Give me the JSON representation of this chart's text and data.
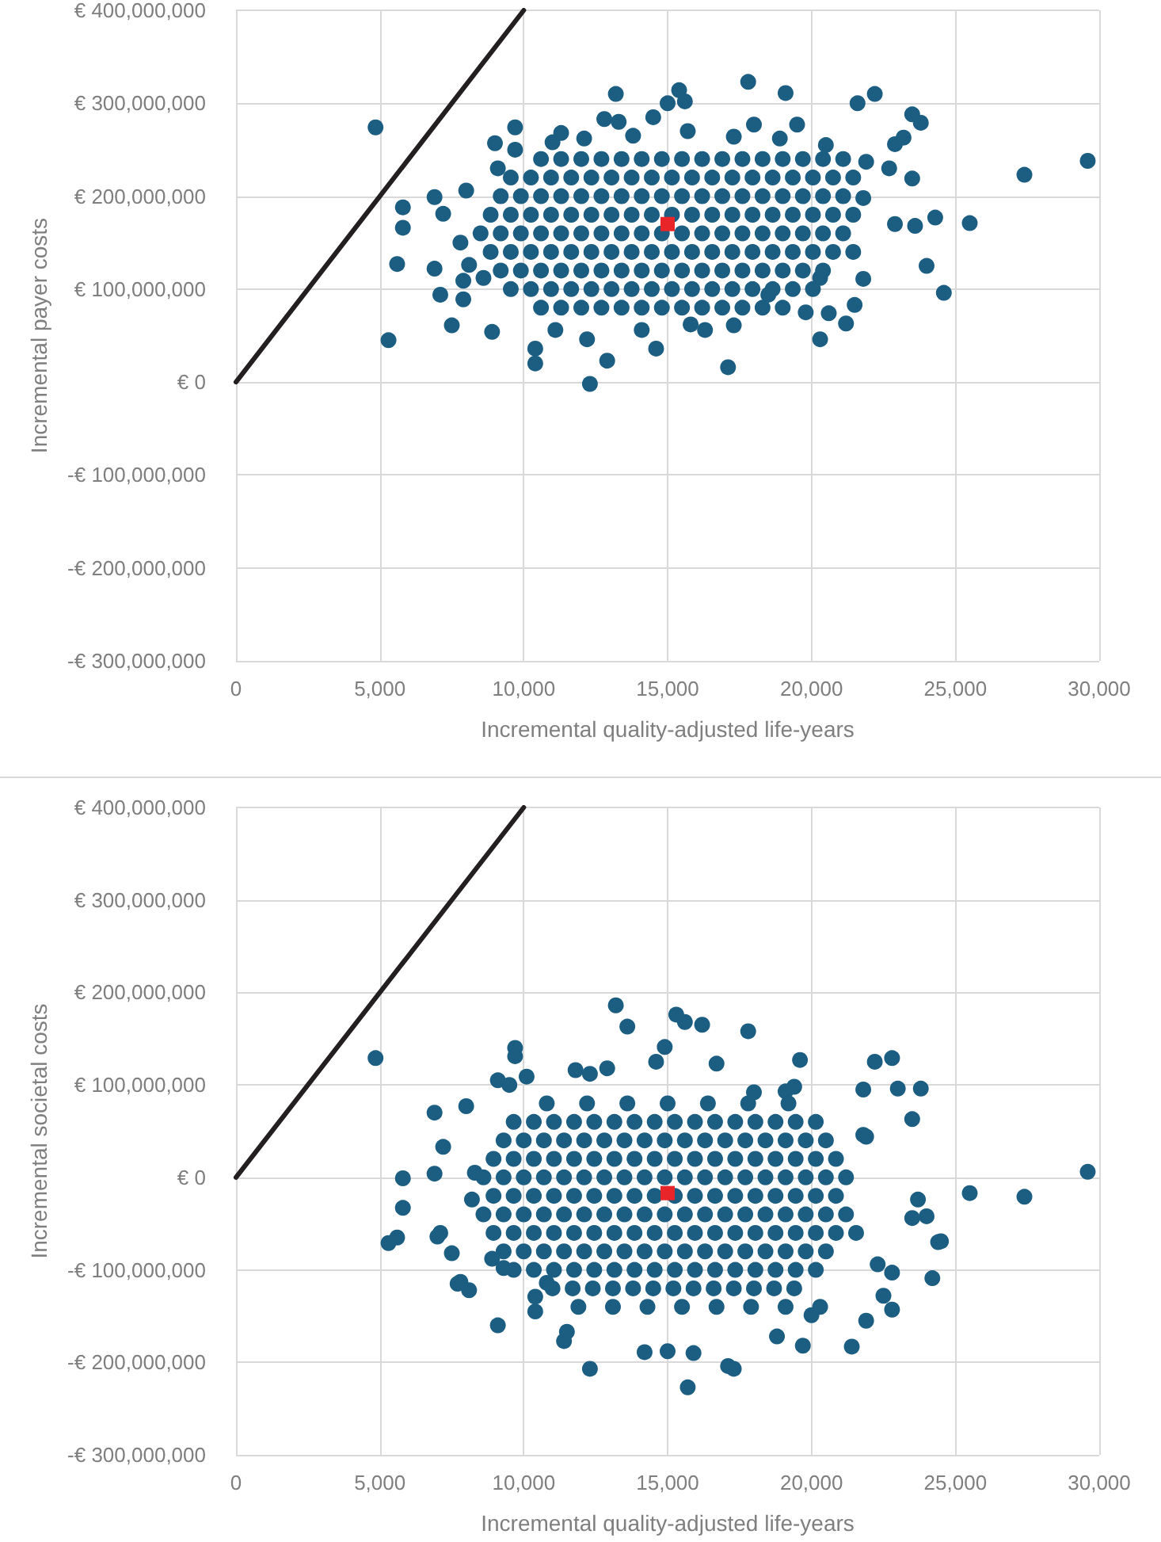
{
  "chart_data": [
    {
      "type": "scatter",
      "xlabel": "Incremental quality-adjusted life-years",
      "ylabel": "Incremental payer costs",
      "xlim": [
        0,
        30000
      ],
      "ylim": [
        -300000000,
        400000000
      ],
      "xticks": [
        0,
        {
          "value": 5000,
          "label": "5,000"
        },
        {
          "value": 10000,
          "label": "10,000"
        },
        {
          "value": 15000,
          "label": "15,000"
        },
        {
          "value": 20000,
          "label": "20,000"
        },
        {
          "value": 25000,
          "label": "25,000"
        },
        {
          "value": 30000,
          "label": "30,000"
        }
      ],
      "yticks": [
        {
          "value": -300000000,
          "label": "-€ 300,000,000"
        },
        {
          "value": -200000000,
          "label": "-€ 200,000,000"
        },
        {
          "value": -100000000,
          "label": "-€ 100,000,000"
        },
        {
          "value": 0,
          "label": "€ 0"
        },
        {
          "value": 100000000,
          "label": "€ 100,000,000"
        },
        {
          "value": 200000000,
          "label": "€ 200,000,000"
        },
        {
          "value": 300000000,
          "label": "€ 300,000,000"
        },
        {
          "value": 400000000,
          "label": "€ 400,000,000"
        }
      ],
      "grid": true,
      "series": [
        {
          "type": "line",
          "color": "#231f20",
          "marker": "none",
          "x": [
            0,
            10000
          ],
          "values": [
            0,
            400000000
          ]
        },
        {
          "color": "#1b5e82",
          "marker": "circle",
          "x": [
            4850,
            29600,
            27400,
            25500,
            24300,
            23600,
            24000,
            24600,
            23500,
            23800,
            22200,
            21600,
            19100,
            17800,
            15400,
            13200,
            9700,
            9000,
            5800,
            5800,
            6900,
            8000,
            7200,
            5600,
            6900,
            7100,
            7900,
            7500,
            8900,
            5300,
            10400,
            10400,
            12900,
            12300,
            14600,
            17100,
            20300,
            21500,
            19800,
            21200,
            21800,
            21800,
            22900,
            23200,
            22700,
            23500,
            22900,
            21900,
            19500,
            18000,
            15000,
            14500,
            12800,
            13300,
            11300,
            11000,
            9100,
            7800,
            8100,
            8600,
            7900,
            11100,
            12200,
            14100,
            15800,
            16300,
            17300,
            18500,
            20600,
            20300,
            9700,
            15600,
            12100,
            13800,
            15700,
            17300,
            18900,
            20500,
            10600,
            11300,
            12000,
            12700,
            13400,
            14100,
            14800,
            15500,
            16200,
            16900,
            17600,
            18300,
            19000,
            19700,
            20400,
            21100,
            9550,
            10250,
            10950,
            11650,
            12350,
            13050,
            13750,
            14450,
            15150,
            15850,
            16550,
            17250,
            17950,
            18650,
            19350,
            20050,
            20750,
            21450,
            9200,
            9900,
            10600,
            11300,
            12000,
            12700,
            13400,
            14100,
            14800,
            15500,
            16200,
            16900,
            17600,
            18300,
            19000,
            19700,
            20400,
            21100,
            8850,
            9550,
            10250,
            10950,
            11650,
            12350,
            13050,
            13750,
            14450,
            15150,
            15850,
            16550,
            17250,
            17950,
            18650,
            19350,
            20050,
            20750,
            21450,
            8500,
            9200,
            9900,
            10600,
            11300,
            12000,
            12700,
            13400,
            14100,
            14800,
            15500,
            16200,
            16900,
            17600,
            18300,
            19000,
            19700,
            20400,
            21100,
            8850,
            9550,
            10250,
            10950,
            11650,
            12350,
            13050,
            13750,
            14450,
            15150,
            15850,
            16550,
            17250,
            17950,
            18650,
            19350,
            20050,
            20750,
            21450,
            9200,
            9900,
            10600,
            11300,
            12000,
            12700,
            13400,
            14100,
            14800,
            15500,
            16200,
            16900,
            17600,
            18300,
            19000,
            19700,
            20400,
            9550,
            10250,
            10950,
            11650,
            12350,
            13050,
            13750,
            14450,
            15150,
            15850,
            16550,
            17250,
            17950,
            18650,
            19350,
            20050,
            10600,
            11300,
            12000,
            12700,
            13400,
            14100,
            14800,
            15500,
            16200,
            16900,
            17600,
            18300,
            19000
          ],
          "values": [
            274000000,
            238000000,
            223000000,
            171000000,
            177000000,
            168000000,
            125000000,
            96000000,
            288000000,
            279000000,
            310000000,
            300000000,
            311000000,
            323000000,
            314000000,
            310000000,
            274000000,
            257000000,
            188000000,
            166000000,
            199000000,
            206000000,
            181000000,
            127000000,
            122000000,
            94000000,
            89000000,
            61000000,
            54000000,
            45000000,
            36000000,
            20000000,
            23000000,
            -2000000,
            36000000,
            16000000,
            46000000,
            83000000,
            75000000,
            63000000,
            111000000,
            198000000,
            256000000,
            263000000,
            230000000,
            219000000,
            170000000,
            237000000,
            277000000,
            277000000,
            300000000,
            285000000,
            283000000,
            280000000,
            268000000,
            258000000,
            230000000,
            150000000,
            126000000,
            112000000,
            109000000,
            56000000,
            46000000,
            56000000,
            62000000,
            56000000,
            61000000,
            94000000,
            74000000,
            112000000,
            250000000,
            302000000,
            262000000,
            265000000,
            270000000,
            264000000,
            262000000,
            255000000,
            240000000,
            240000000,
            240000000,
            240000000,
            240000000,
            240000000,
            240000000,
            240000000,
            240000000,
            240000000,
            240000000,
            240000000,
            240000000,
            240000000,
            240000000,
            240000000,
            220000000,
            220000000,
            220000000,
            220000000,
            220000000,
            220000000,
            220000000,
            220000000,
            220000000,
            220000000,
            220000000,
            220000000,
            220000000,
            220000000,
            220000000,
            220000000,
            220000000,
            220000000,
            200000000,
            200000000,
            200000000,
            200000000,
            200000000,
            200000000,
            200000000,
            200000000,
            200000000,
            200000000,
            200000000,
            200000000,
            200000000,
            200000000,
            200000000,
            200000000,
            200000000,
            200000000,
            180000000,
            180000000,
            180000000,
            180000000,
            180000000,
            180000000,
            180000000,
            180000000,
            180000000,
            180000000,
            180000000,
            180000000,
            180000000,
            180000000,
            180000000,
            180000000,
            180000000,
            180000000,
            180000000,
            160000000,
            160000000,
            160000000,
            160000000,
            160000000,
            160000000,
            160000000,
            160000000,
            160000000,
            160000000,
            160000000,
            160000000,
            160000000,
            160000000,
            160000000,
            160000000,
            160000000,
            160000000,
            160000000,
            140000000,
            140000000,
            140000000,
            140000000,
            140000000,
            140000000,
            140000000,
            140000000,
            140000000,
            140000000,
            140000000,
            140000000,
            140000000,
            140000000,
            140000000,
            140000000,
            140000000,
            140000000,
            140000000,
            120000000,
            120000000,
            120000000,
            120000000,
            120000000,
            120000000,
            120000000,
            120000000,
            120000000,
            120000000,
            120000000,
            120000000,
            120000000,
            120000000,
            120000000,
            120000000,
            120000000,
            100000000,
            100000000,
            100000000,
            100000000,
            100000000,
            100000000,
            100000000,
            100000000,
            100000000,
            100000000,
            100000000,
            100000000,
            100000000,
            100000000,
            100000000,
            100000000,
            80000000,
            80000000,
            80000000,
            80000000,
            80000000,
            80000000,
            80000000,
            80000000,
            80000000,
            80000000,
            80000000,
            80000000,
            80000000
          ]
        },
        {
          "color": "#e8262a",
          "marker": "square",
          "x": [
            15000
          ],
          "values": [
            170000000
          ]
        }
      ]
    },
    {
      "type": "scatter",
      "xlabel": "Incremental quality-adjusted life-years",
      "ylabel": "Incremental societal costs",
      "xlim": [
        0,
        30000
      ],
      "ylim": [
        -300000000,
        400000000
      ],
      "xticks": [
        0,
        {
          "value": 5000,
          "label": "5,000"
        },
        {
          "value": 10000,
          "label": "10,000"
        },
        {
          "value": 15000,
          "label": "15,000"
        },
        {
          "value": 20000,
          "label": "20,000"
        },
        {
          "value": 25000,
          "label": "25,000"
        },
        {
          "value": 30000,
          "label": "30,000"
        }
      ],
      "yticks": [
        {
          "value": -300000000,
          "label": "-€ 300,000,000"
        },
        {
          "value": -200000000,
          "label": "-€ 200,000,000"
        },
        {
          "value": -100000000,
          "label": "-€ 100,000,000"
        },
        {
          "value": 0,
          "label": "€ 0"
        },
        {
          "value": 100000000,
          "label": "€ 100,000,000"
        },
        {
          "value": 200000000,
          "label": "€ 200,000,000"
        },
        {
          "value": 300000000,
          "label": "€ 300,000,000"
        },
        {
          "value": 400000000,
          "label": "€ 400,000,000"
        }
      ],
      "grid": true,
      "series": [
        {
          "type": "line",
          "color": "#231f20",
          "marker": "none",
          "x": [
            0,
            10000
          ],
          "values": [
            0,
            400000000
          ]
        },
        {
          "color": "#1b5e82",
          "marker": "circle",
          "x": [
            4850,
            29600,
            27400,
            25500,
            24500,
            24200,
            23700,
            23500,
            24000,
            23800,
            23000,
            22200,
            22800,
            21800,
            23500,
            19600,
            17800,
            16200,
            15600,
            15300,
            13600,
            13200,
            9700,
            9700,
            6900,
            8000,
            7200,
            5800,
            6900,
            8300,
            5800,
            8200,
            5300,
            5600,
            7100,
            7500,
            7800,
            8100,
            8900,
            9300,
            10100,
            9100,
            9500,
            11800,
            12300,
            12900,
            14600,
            14900,
            16700,
            18000,
            19100,
            19400,
            21800,
            21900,
            9100,
            12300,
            15700,
            17100,
            17300,
            11400,
            14200,
            15000,
            15900,
            18800,
            19700,
            21400,
            20000,
            21900,
            22800,
            22500,
            24400,
            22800,
            22300,
            7000,
            7700,
            10400,
            10400,
            10800,
            11500,
            10800,
            12200,
            13600,
            15000,
            16400,
            17800,
            19200,
            9650,
            10350,
            11050,
            11750,
            12450,
            13150,
            13850,
            14550,
            15250,
            15950,
            16650,
            17350,
            18050,
            18750,
            19450,
            20150,
            9300,
            10000,
            10700,
            11400,
            12100,
            12800,
            13500,
            14200,
            14900,
            15600,
            16300,
            17000,
            17700,
            18400,
            19100,
            19800,
            20500,
            8950,
            9650,
            10350,
            11050,
            11750,
            12450,
            13150,
            13850,
            14550,
            15250,
            15950,
            16650,
            17350,
            18050,
            18750,
            19450,
            20150,
            20850,
            8600,
            9300,
            10000,
            10700,
            11400,
            12100,
            12800,
            13500,
            14200,
            14900,
            15600,
            16300,
            17000,
            17700,
            18400,
            19100,
            19800,
            20500,
            21200,
            8950,
            9650,
            10350,
            11050,
            11750,
            12450,
            13150,
            13850,
            14550,
            15250,
            15950,
            16650,
            17350,
            18050,
            18750,
            19450,
            20150,
            20850,
            8600,
            9300,
            10000,
            10700,
            11400,
            12100,
            12800,
            13500,
            14200,
            14900,
            15600,
            16300,
            17000,
            17700,
            18400,
            19100,
            19800,
            20500,
            21200,
            8950,
            9650,
            10350,
            11050,
            11750,
            12450,
            13150,
            13850,
            14550,
            15250,
            15950,
            16650,
            17350,
            18050,
            18750,
            19450,
            20150,
            20850,
            21550,
            9300,
            10000,
            10700,
            11400,
            12100,
            12800,
            13500,
            14200,
            14900,
            15600,
            16300,
            17000,
            17700,
            18400,
            19100,
            19800,
            20500,
            9650,
            10350,
            11050,
            11750,
            12450,
            13150,
            13850,
            14550,
            15250,
            15950,
            16650,
            17350,
            18050,
            18750,
            19450,
            20150,
            11000,
            11700,
            12400,
            13100,
            13800,
            14500,
            15200,
            15900,
            16600,
            17300,
            18000,
            18700,
            19400,
            11900,
            13100,
            14300,
            15500,
            16700,
            17900,
            19100,
            20300
          ],
          "values": [
            129000000,
            6000000,
            -21000000,
            -17000000,
            -69000000,
            -109000000,
            -24000000,
            -44000000,
            -42000000,
            96000000,
            96000000,
            125000000,
            129000000,
            95000000,
            63000000,
            127000000,
            158000000,
            165000000,
            168000000,
            176000000,
            163000000,
            186000000,
            140000000,
            131000000,
            70000000,
            77000000,
            33000000,
            -1000000,
            4000000,
            5000000,
            -33000000,
            -24000000,
            -71000000,
            -65000000,
            -60000000,
            -82000000,
            -113000000,
            -122000000,
            -88000000,
            -98000000,
            109000000,
            105000000,
            100000000,
            116000000,
            112000000,
            118000000,
            125000000,
            141000000,
            123000000,
            92000000,
            93000000,
            98000000,
            46000000,
            44000000,
            -160000000,
            -207000000,
            -227000000,
            -204000000,
            -207000000,
            -177000000,
            -189000000,
            -188000000,
            -190000000,
            -172000000,
            -182000000,
            -183000000,
            -149000000,
            -155000000,
            -143000000,
            -128000000,
            -70000000,
            -103000000,
            -94000000,
            -64000000,
            -115000000,
            -129000000,
            -145000000,
            -114000000,
            -167000000,
            80000000,
            80000000,
            80000000,
            80000000,
            80000000,
            80000000,
            80000000,
            60000000,
            60000000,
            60000000,
            60000000,
            60000000,
            60000000,
            60000000,
            60000000,
            60000000,
            60000000,
            60000000,
            60000000,
            60000000,
            60000000,
            60000000,
            60000000,
            40000000,
            40000000,
            40000000,
            40000000,
            40000000,
            40000000,
            40000000,
            40000000,
            40000000,
            40000000,
            40000000,
            40000000,
            40000000,
            40000000,
            40000000,
            40000000,
            40000000,
            20000000,
            20000000,
            20000000,
            20000000,
            20000000,
            20000000,
            20000000,
            20000000,
            20000000,
            20000000,
            20000000,
            20000000,
            20000000,
            20000000,
            20000000,
            20000000,
            20000000,
            20000000,
            0,
            0,
            0,
            0,
            0,
            0,
            0,
            0,
            0,
            0,
            0,
            0,
            0,
            0,
            0,
            0,
            0,
            0,
            0,
            -20000000,
            -20000000,
            -20000000,
            -20000000,
            -20000000,
            -20000000,
            -20000000,
            -20000000,
            -20000000,
            -20000000,
            -20000000,
            -20000000,
            -20000000,
            -20000000,
            -20000000,
            -20000000,
            -20000000,
            -20000000,
            -40000000,
            -40000000,
            -40000000,
            -40000000,
            -40000000,
            -40000000,
            -40000000,
            -40000000,
            -40000000,
            -40000000,
            -40000000,
            -40000000,
            -40000000,
            -40000000,
            -40000000,
            -40000000,
            -40000000,
            -40000000,
            -40000000,
            -60000000,
            -60000000,
            -60000000,
            -60000000,
            -60000000,
            -60000000,
            -60000000,
            -60000000,
            -60000000,
            -60000000,
            -60000000,
            -60000000,
            -60000000,
            -60000000,
            -60000000,
            -60000000,
            -60000000,
            -60000000,
            -60000000,
            -80000000,
            -80000000,
            -80000000,
            -80000000,
            -80000000,
            -80000000,
            -80000000,
            -80000000,
            -80000000,
            -80000000,
            -80000000,
            -80000000,
            -80000000,
            -80000000,
            -80000000,
            -80000000,
            -80000000,
            -100000000,
            -100000000,
            -100000000,
            -100000000,
            -100000000,
            -100000000,
            -100000000,
            -100000000,
            -100000000,
            -100000000,
            -100000000,
            -100000000,
            -100000000,
            -100000000,
            -100000000,
            -100000000,
            -120000000,
            -120000000,
            -120000000,
            -120000000,
            -120000000,
            -120000000,
            -120000000,
            -120000000,
            -120000000,
            -120000000,
            -120000000,
            -120000000,
            -120000000,
            -140000000,
            -140000000,
            -140000000,
            -140000000,
            -140000000,
            -140000000,
            -140000000,
            -140000000
          ]
        },
        {
          "color": "#e8262a",
          "marker": "square",
          "x": [
            15000
          ],
          "values": [
            -17000000
          ]
        }
      ]
    }
  ]
}
